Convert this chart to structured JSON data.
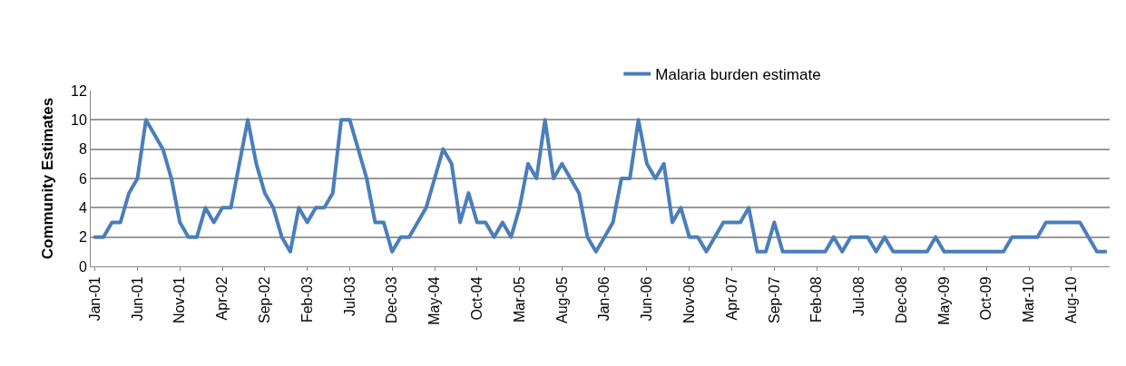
{
  "chart_data": {
    "type": "line",
    "ylabel": "Community Estimates",
    "categories": [
      "Jan-01",
      null,
      null,
      null,
      null,
      "Jun-01",
      null,
      null,
      null,
      null,
      "Nov-01",
      null,
      null,
      null,
      null,
      "Apr-02",
      null,
      null,
      null,
      null,
      "Sep-02",
      null,
      null,
      null,
      null,
      "Feb-03",
      null,
      null,
      null,
      null,
      "Jul-03",
      null,
      null,
      null,
      null,
      "Dec-03",
      null,
      null,
      null,
      null,
      "May-04",
      null,
      null,
      null,
      null,
      "Oct-04",
      null,
      null,
      null,
      null,
      "Mar-05",
      null,
      null,
      null,
      null,
      "Aug-05",
      null,
      null,
      null,
      null,
      "Jan-06",
      null,
      null,
      null,
      null,
      "Jun-06",
      null,
      null,
      null,
      null,
      "Nov-06",
      null,
      null,
      null,
      null,
      "Apr-07",
      null,
      null,
      null,
      null,
      "Sep-07",
      null,
      null,
      null,
      null,
      "Feb-08",
      null,
      null,
      null,
      null,
      "Jul-08",
      null,
      null,
      null,
      null,
      "Dec-08",
      null,
      null,
      null,
      null,
      "May-09",
      null,
      null,
      null,
      null,
      "Oct-09",
      null,
      null,
      null,
      null,
      "Mar-10",
      null,
      null,
      null,
      null,
      "Aug-10",
      null,
      null,
      null,
      null
    ],
    "series": [
      {
        "name": "Malaria burden estimate",
        "color": "#4a7ebb",
        "values": [
          2,
          2,
          3,
          3,
          5,
          6,
          10,
          9,
          8,
          6,
          3,
          2,
          2,
          4,
          3,
          4,
          4,
          7,
          10,
          7,
          5,
          4,
          2,
          1,
          4,
          3,
          4,
          4,
          5,
          10,
          10,
          8,
          6,
          3,
          3,
          1,
          2,
          2,
          3,
          4,
          6,
          8,
          7,
          3,
          5,
          3,
          3,
          2,
          3,
          2,
          4,
          7,
          6,
          10,
          6,
          7,
          6,
          5,
          2,
          1,
          2,
          3,
          6,
          6,
          10,
          7,
          6,
          7,
          3,
          4,
          2,
          2,
          1,
          2,
          3,
          3,
          3,
          4,
          1,
          1,
          3,
          1,
          1,
          1,
          1,
          1,
          1,
          2,
          1,
          2,
          2,
          2,
          1,
          2,
          1,
          1,
          1,
          1,
          1,
          2,
          1,
          1,
          1,
          1,
          1,
          1,
          1,
          1,
          2,
          2,
          2,
          2,
          3,
          3,
          3,
          3,
          3,
          2,
          1,
          1
        ]
      }
    ],
    "ylim": [
      0,
      12
    ],
    "yticks": [
      0,
      2,
      4,
      6,
      8,
      10,
      12
    ],
    "grid": "y",
    "legend": "top",
    "marker": "none",
    "line_style": "solid"
  }
}
